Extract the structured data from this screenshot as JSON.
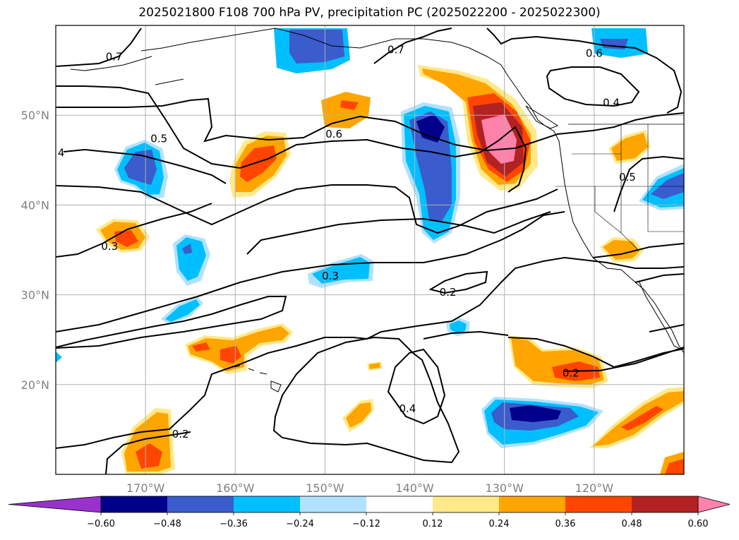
{
  "title": "2025021800 F108 700 hPa PV, precipitation PC (2025022200 - 2025022300)",
  "map": {
    "lon_range": [
      -180,
      -110
    ],
    "lat_range": [
      10,
      60
    ],
    "gridlines": true,
    "lon_ticks": [
      {
        "lon": -170,
        "label": "170°W"
      },
      {
        "lon": -160,
        "label": "160°W"
      },
      {
        "lon": -150,
        "label": "150°W"
      },
      {
        "lon": -140,
        "label": "140°W"
      },
      {
        "lon": -130,
        "label": "130°W"
      },
      {
        "lon": -120,
        "label": "120°W"
      }
    ],
    "lat_ticks": [
      {
        "lat": 20,
        "label": "20°N"
      },
      {
        "lat": 30,
        "label": "30°N"
      },
      {
        "lat": 40,
        "label": "40°N"
      },
      {
        "lat": 50,
        "label": "50°N"
      }
    ],
    "contour_labels": [
      {
        "text": "0.7",
        "lon": -173.5,
        "lat": 56.5
      },
      {
        "text": "0.7",
        "lon": -142.1,
        "lat": 57.3
      },
      {
        "text": "0.6",
        "lon": -120.0,
        "lat": 56.9
      },
      {
        "text": "0.4",
        "lon": -118.1,
        "lat": 51.4
      },
      {
        "text": "0.5",
        "lon": -116.3,
        "lat": 43.1
      },
      {
        "text": "0.5",
        "lon": -168.5,
        "lat": 47.4
      },
      {
        "text": "0.6",
        "lon": -149.0,
        "lat": 47.9
      },
      {
        "text": "4",
        "lon": -179.4,
        "lat": 45.8
      },
      {
        "text": "0.3",
        "lon": -174.0,
        "lat": 35.4
      },
      {
        "text": "0.3",
        "lon": -149.4,
        "lat": 32.1
      },
      {
        "text": "0.2",
        "lon": -136.3,
        "lat": 30.3
      },
      {
        "text": "0.2",
        "lon": -122.6,
        "lat": 21.3
      },
      {
        "text": "0.4",
        "lon": -140.8,
        "lat": 17.3
      },
      {
        "text": "0.2",
        "lon": -166.1,
        "lat": 14.5
      }
    ],
    "contour_color": "#000000",
    "gridline_color": "#b0b0b0"
  },
  "colorbar": {
    "levels": [
      -0.6,
      -0.48,
      -0.36,
      -0.24,
      -0.12,
      0.12,
      0.24,
      0.36,
      0.48,
      0.6
    ],
    "tick_labels": [
      "−0.60",
      "−0.48",
      "−0.36",
      "−0.24",
      "−0.12",
      "0.12",
      "0.24",
      "0.36",
      "0.48",
      "0.60"
    ],
    "colors": [
      "#9932cc",
      "#00008b",
      "#3a5ccc",
      "#00bfff",
      "#b0e2ff",
      "#ffffff",
      "#ffe98a",
      "#ffa500",
      "#ff4500",
      "#b22222",
      "#ff82ab"
    ],
    "extend": "both"
  }
}
